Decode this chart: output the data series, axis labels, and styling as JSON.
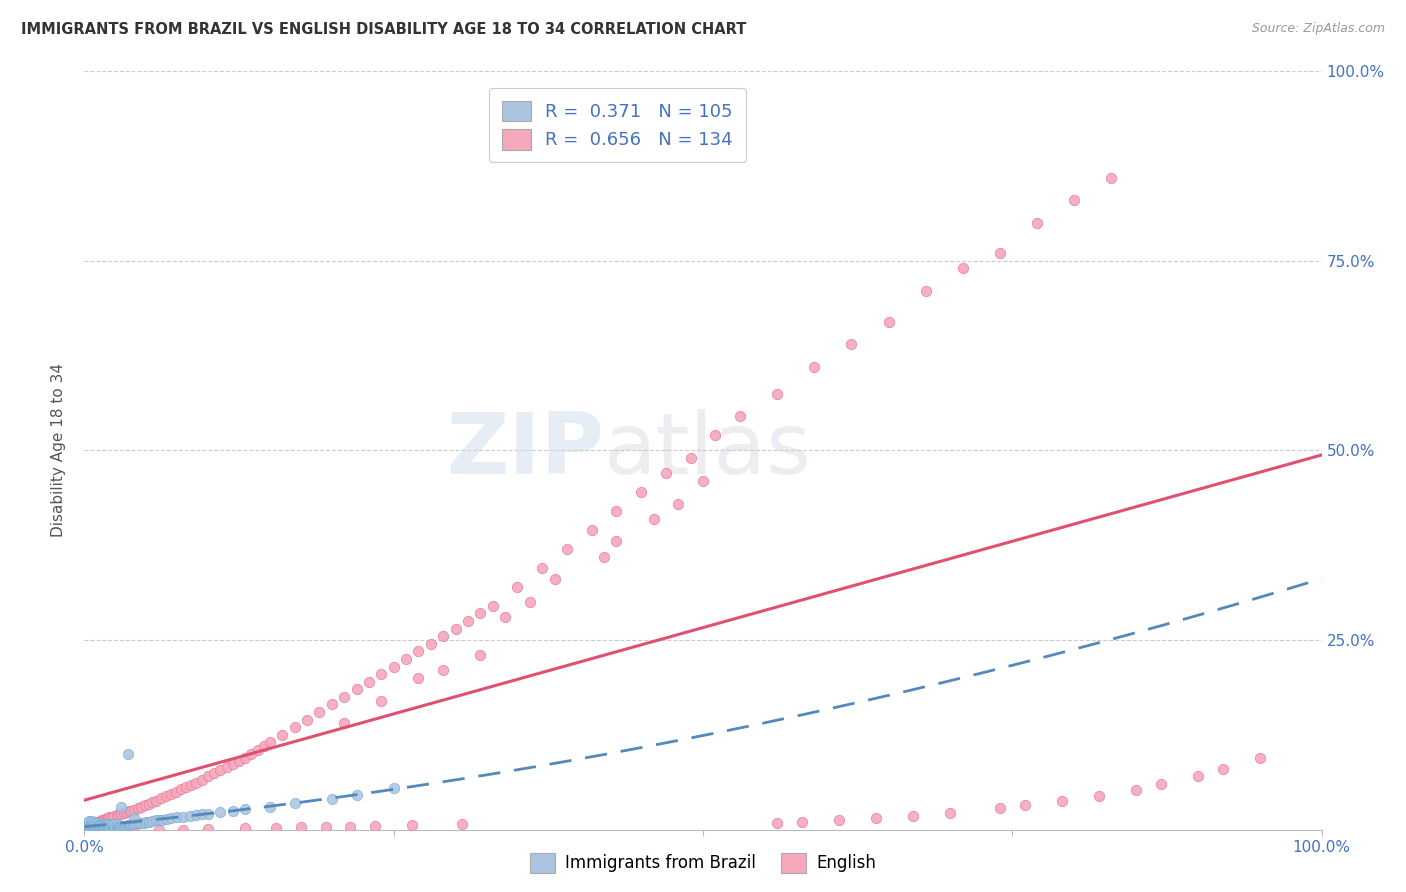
{
  "title": "IMMIGRANTS FROM BRAZIL VS ENGLISH DISABILITY AGE 18 TO 34 CORRELATION CHART",
  "source": "Source: ZipAtlas.com",
  "ylabel": "Disability Age 18 to 34",
  "xlim": [
    0,
    1.0
  ],
  "ylim": [
    0,
    1.0
  ],
  "brazil_color": "#aac4e0",
  "brazil_edge": "#7aaed6",
  "english_color": "#f5a8bc",
  "english_edge": "#e87fa0",
  "trendline_brazil_color": "#5588bb",
  "trendline_english_color": "#e05070",
  "legend_R_brazil": "0.371",
  "legend_N_brazil": "105",
  "legend_R_english": "0.656",
  "legend_N_english": "134",
  "watermark_zip": "ZIP",
  "watermark_atlas": "atlas",
  "background_color": "#ffffff",
  "grid_color": "#cccccc",
  "brazil_scatter_x": [
    0.001,
    0.001,
    0.001,
    0.002,
    0.002,
    0.002,
    0.002,
    0.003,
    0.003,
    0.003,
    0.003,
    0.004,
    0.004,
    0.004,
    0.004,
    0.005,
    0.005,
    0.005,
    0.006,
    0.006,
    0.006,
    0.006,
    0.007,
    0.007,
    0.007,
    0.008,
    0.008,
    0.008,
    0.009,
    0.009,
    0.01,
    0.01,
    0.01,
    0.011,
    0.011,
    0.012,
    0.012,
    0.013,
    0.013,
    0.014,
    0.014,
    0.015,
    0.015,
    0.016,
    0.016,
    0.017,
    0.017,
    0.018,
    0.018,
    0.019,
    0.019,
    0.02,
    0.02,
    0.021,
    0.022,
    0.022,
    0.023,
    0.024,
    0.024,
    0.025,
    0.026,
    0.026,
    0.027,
    0.028,
    0.029,
    0.03,
    0.031,
    0.032,
    0.033,
    0.034,
    0.035,
    0.036,
    0.037,
    0.038,
    0.039,
    0.04,
    0.042,
    0.044,
    0.046,
    0.048,
    0.05,
    0.052,
    0.055,
    0.058,
    0.06,
    0.063,
    0.067,
    0.07,
    0.075,
    0.08,
    0.085,
    0.09,
    0.095,
    0.1,
    0.11,
    0.12,
    0.13,
    0.15,
    0.17,
    0.2,
    0.22,
    0.25,
    0.03,
    0.035,
    0.04
  ],
  "brazil_scatter_y": [
    0.0,
    0.003,
    0.005,
    0.0,
    0.003,
    0.006,
    0.008,
    0.001,
    0.004,
    0.007,
    0.01,
    0.002,
    0.005,
    0.008,
    0.011,
    0.001,
    0.004,
    0.007,
    0.002,
    0.005,
    0.008,
    0.011,
    0.003,
    0.006,
    0.009,
    0.002,
    0.005,
    0.008,
    0.003,
    0.006,
    0.002,
    0.005,
    0.008,
    0.003,
    0.006,
    0.003,
    0.006,
    0.003,
    0.006,
    0.003,
    0.006,
    0.003,
    0.007,
    0.003,
    0.006,
    0.003,
    0.006,
    0.003,
    0.007,
    0.003,
    0.006,
    0.003,
    0.007,
    0.004,
    0.003,
    0.007,
    0.004,
    0.003,
    0.007,
    0.004,
    0.003,
    0.007,
    0.004,
    0.004,
    0.004,
    0.005,
    0.005,
    0.005,
    0.005,
    0.005,
    0.006,
    0.006,
    0.006,
    0.007,
    0.007,
    0.007,
    0.008,
    0.008,
    0.009,
    0.009,
    0.01,
    0.01,
    0.011,
    0.012,
    0.012,
    0.013,
    0.014,
    0.015,
    0.016,
    0.017,
    0.018,
    0.019,
    0.02,
    0.021,
    0.023,
    0.025,
    0.027,
    0.03,
    0.035,
    0.04,
    0.045,
    0.055,
    0.03,
    0.1,
    0.015
  ],
  "english_scatter_x": [
    0.001,
    0.002,
    0.003,
    0.004,
    0.005,
    0.006,
    0.007,
    0.008,
    0.009,
    0.01,
    0.011,
    0.012,
    0.013,
    0.014,
    0.015,
    0.016,
    0.017,
    0.018,
    0.019,
    0.02,
    0.022,
    0.024,
    0.026,
    0.028,
    0.03,
    0.032,
    0.034,
    0.036,
    0.038,
    0.04,
    0.043,
    0.046,
    0.049,
    0.052,
    0.055,
    0.058,
    0.062,
    0.066,
    0.07,
    0.074,
    0.078,
    0.082,
    0.086,
    0.09,
    0.095,
    0.1,
    0.105,
    0.11,
    0.115,
    0.12,
    0.125,
    0.13,
    0.135,
    0.14,
    0.145,
    0.15,
    0.16,
    0.17,
    0.18,
    0.19,
    0.2,
    0.21,
    0.22,
    0.23,
    0.24,
    0.25,
    0.26,
    0.27,
    0.28,
    0.29,
    0.3,
    0.31,
    0.32,
    0.33,
    0.35,
    0.37,
    0.39,
    0.41,
    0.43,
    0.45,
    0.47,
    0.49,
    0.51,
    0.53,
    0.56,
    0.59,
    0.62,
    0.65,
    0.68,
    0.71,
    0.74,
    0.77,
    0.8,
    0.83,
    0.43,
    0.46,
    0.38,
    0.42,
    0.48,
    0.5,
    0.34,
    0.36,
    0.27,
    0.29,
    0.32,
    0.24,
    0.21,
    0.56,
    0.58,
    0.61,
    0.64,
    0.67,
    0.7,
    0.74,
    0.76,
    0.79,
    0.82,
    0.85,
    0.87,
    0.9,
    0.92,
    0.95,
    0.04,
    0.06,
    0.08,
    0.1,
    0.13,
    0.155,
    0.175,
    0.195,
    0.215,
    0.235,
    0.265,
    0.305
  ],
  "english_scatter_y": [
    0.0,
    0.002,
    0.003,
    0.004,
    0.005,
    0.006,
    0.007,
    0.007,
    0.008,
    0.009,
    0.01,
    0.01,
    0.011,
    0.012,
    0.012,
    0.013,
    0.014,
    0.015,
    0.015,
    0.016,
    0.017,
    0.018,
    0.019,
    0.02,
    0.021,
    0.022,
    0.023,
    0.024,
    0.025,
    0.026,
    0.028,
    0.03,
    0.032,
    0.034,
    0.036,
    0.038,
    0.041,
    0.044,
    0.047,
    0.05,
    0.053,
    0.056,
    0.059,
    0.062,
    0.066,
    0.07,
    0.074,
    0.078,
    0.082,
    0.086,
    0.09,
    0.095,
    0.1,
    0.105,
    0.11,
    0.115,
    0.125,
    0.135,
    0.145,
    0.155,
    0.165,
    0.175,
    0.185,
    0.195,
    0.205,
    0.215,
    0.225,
    0.235,
    0.245,
    0.255,
    0.265,
    0.275,
    0.285,
    0.295,
    0.32,
    0.345,
    0.37,
    0.395,
    0.42,
    0.445,
    0.47,
    0.49,
    0.52,
    0.545,
    0.575,
    0.61,
    0.64,
    0.67,
    0.71,
    0.74,
    0.76,
    0.8,
    0.83,
    0.86,
    0.38,
    0.41,
    0.33,
    0.36,
    0.43,
    0.46,
    0.28,
    0.3,
    0.2,
    0.21,
    0.23,
    0.17,
    0.14,
    0.008,
    0.01,
    0.012,
    0.015,
    0.018,
    0.022,
    0.028,
    0.032,
    0.038,
    0.044,
    0.052,
    0.06,
    0.07,
    0.08,
    0.095,
    0.0,
    0.0,
    0.0,
    0.001,
    0.002,
    0.002,
    0.003,
    0.003,
    0.004,
    0.005,
    0.006,
    0.007
  ]
}
